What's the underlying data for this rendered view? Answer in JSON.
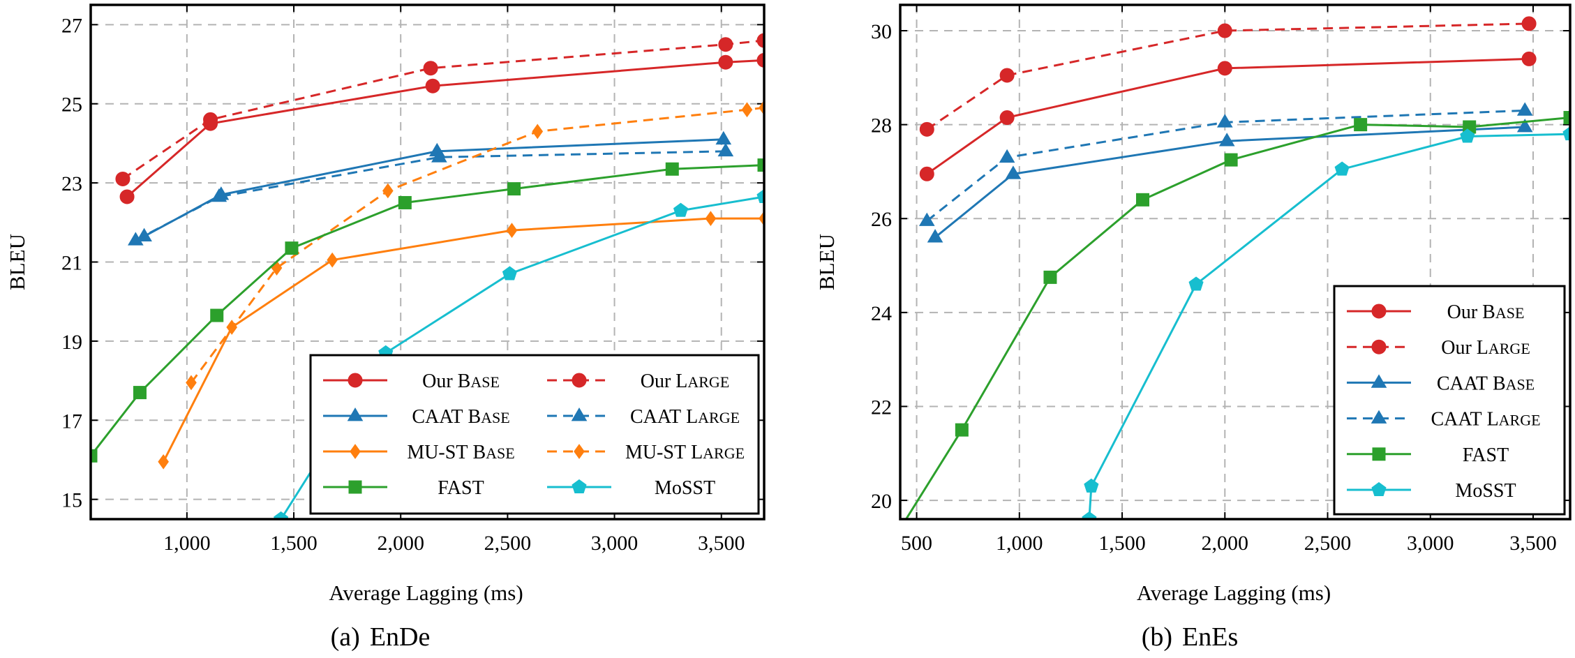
{
  "colors": {
    "red": "#d62728",
    "blue": "#1f77b4",
    "orange": "#ff7f0e",
    "green": "#2ca02c",
    "cyan": "#17becf"
  },
  "chart_data": [
    {
      "type": "line",
      "caption_tag": "(a)",
      "caption_name": "EnDe",
      "xlabel": "Average Lagging (ms)",
      "ylabel": "BLEU",
      "xlim": [
        550,
        3700
      ],
      "ylim": [
        14.5,
        27.5
      ],
      "xticks": [
        1000,
        1500,
        2000,
        2500,
        3000,
        3500
      ],
      "xtick_labels": [
        "1,000",
        "1,500",
        "2,000",
        "2,500",
        "3,000",
        "3,500"
      ],
      "yticks": [
        15,
        17,
        19,
        21,
        23,
        25,
        27
      ],
      "ytick_labels": [
        "15",
        "17",
        "19",
        "21",
        "23",
        "25",
        "27"
      ],
      "grid": true,
      "legend_position": "bottom-right",
      "legend_columns": 2,
      "series": [
        {
          "name_main": "Our ",
          "name_sc": "Base",
          "color": "#d62728",
          "dash": "solid",
          "marker": "circle",
          "x": [
            720,
            1110,
            2150,
            3520,
            3700
          ],
          "y": [
            22.65,
            24.5,
            25.45,
            26.05,
            26.1
          ]
        },
        {
          "name_main": "Our ",
          "name_sc": "Large",
          "color": "#d62728",
          "dash": "dashed",
          "marker": "circle",
          "x": [
            700,
            1110,
            2140,
            3520,
            3700
          ],
          "y": [
            23.1,
            24.6,
            25.9,
            26.5,
            26.6
          ]
        },
        {
          "name_main": "CAAT ",
          "name_sc": "Base",
          "color": "#1f77b4",
          "dash": "solid",
          "marker": "triangle",
          "x": [
            800,
            1160,
            2170,
            3510
          ],
          "y": [
            21.65,
            22.7,
            23.8,
            24.1
          ]
        },
        {
          "name_main": "CAAT ",
          "name_sc": "Large",
          "color": "#1f77b4",
          "dash": "dashed",
          "marker": "triangle",
          "x": [
            760,
            1150,
            2180,
            3520
          ],
          "y": [
            21.55,
            22.65,
            23.65,
            23.8
          ]
        },
        {
          "name_main": "MU-ST ",
          "name_sc": "Base",
          "color": "#ff7f0e",
          "dash": "solid",
          "marker": "diamond",
          "x": [
            890,
            1210,
            1680,
            2520,
            3450,
            3700
          ],
          "y": [
            15.95,
            19.35,
            21.05,
            21.8,
            22.1,
            22.1
          ]
        },
        {
          "name_main": "MU-ST ",
          "name_sc": "Large",
          "color": "#ff7f0e",
          "dash": "dashed",
          "marker": "diamond",
          "x": [
            1020,
            1420,
            1940,
            2640,
            3620,
            3700
          ],
          "y": [
            17.95,
            20.85,
            22.8,
            24.3,
            24.85,
            24.9
          ]
        },
        {
          "name_main": "FAST",
          "name_sc": "",
          "color": "#2ca02c",
          "dash": "solid",
          "marker": "square",
          "x": [
            550,
            780,
            1140,
            1490,
            2020,
            2530,
            3270,
            3700
          ],
          "y": [
            16.1,
            17.7,
            19.65,
            21.35,
            22.5,
            22.85,
            23.35,
            23.45
          ]
        },
        {
          "name_main": "MoSST",
          "name_sc": "",
          "color": "#17becf",
          "dash": "solid",
          "marker": "pentagon",
          "x": [
            1440,
            1930,
            2510,
            3310,
            3700
          ],
          "y": [
            14.5,
            18.7,
            20.7,
            22.3,
            22.65
          ]
        }
      ]
    },
    {
      "type": "line",
      "caption_tag": "(b)",
      "caption_name": "EnEs",
      "xlabel": "Average Lagging (ms)",
      "ylabel": "BLEU",
      "xlim": [
        420,
        3680
      ],
      "ylim": [
        19.6,
        30.55
      ],
      "xticks": [
        500,
        1000,
        1500,
        2000,
        2500,
        3000,
        3500
      ],
      "xtick_labels": [
        "500",
        "1,000",
        "1,500",
        "2,000",
        "2,500",
        "3,000",
        "3,500"
      ],
      "yticks": [
        20,
        22,
        24,
        26,
        28,
        30
      ],
      "ytick_labels": [
        "20",
        "22",
        "24",
        "26",
        "28",
        "30"
      ],
      "grid": true,
      "legend_position": "bottom-right",
      "legend_columns": 1,
      "series": [
        {
          "name_main": "Our ",
          "name_sc": "Base",
          "color": "#d62728",
          "dash": "solid",
          "marker": "circle",
          "x": [
            550,
            940,
            2000,
            3480
          ],
          "y": [
            26.95,
            28.15,
            29.2,
            29.4
          ]
        },
        {
          "name_main": "Our ",
          "name_sc": "Large",
          "color": "#d62728",
          "dash": "dashed",
          "marker": "circle",
          "x": [
            550,
            940,
            2000,
            3480
          ],
          "y": [
            27.9,
            29.05,
            30.0,
            30.15
          ]
        },
        {
          "name_main": "CAAT ",
          "name_sc": "Base",
          "color": "#1f77b4",
          "dash": "solid",
          "marker": "triangle",
          "x": [
            590,
            970,
            2010,
            3460
          ],
          "y": [
            25.6,
            26.95,
            27.65,
            27.95
          ]
        },
        {
          "name_main": "CAAT ",
          "name_sc": "Large",
          "color": "#1f77b4",
          "dash": "dashed",
          "marker": "triangle",
          "x": [
            550,
            940,
            2000,
            3460
          ],
          "y": [
            25.95,
            27.3,
            28.05,
            28.3
          ]
        },
        {
          "name_main": "FAST",
          "name_sc": "",
          "color": "#2ca02c",
          "dash": "solid",
          "marker": "square",
          "x": [
            420,
            720,
            1150,
            1600,
            2030,
            2660,
            3190,
            3680
          ],
          "y": [
            19.4,
            21.5,
            24.75,
            26.4,
            27.25,
            28.0,
            27.95,
            28.15
          ]
        },
        {
          "name_main": "MoSST",
          "name_sc": "",
          "color": "#17becf",
          "dash": "solid",
          "marker": "pentagon",
          "x": [
            1340,
            1350,
            1860,
            2570,
            3180,
            3680
          ],
          "y": [
            19.6,
            20.3,
            24.6,
            27.05,
            27.75,
            27.8
          ]
        }
      ]
    }
  ]
}
